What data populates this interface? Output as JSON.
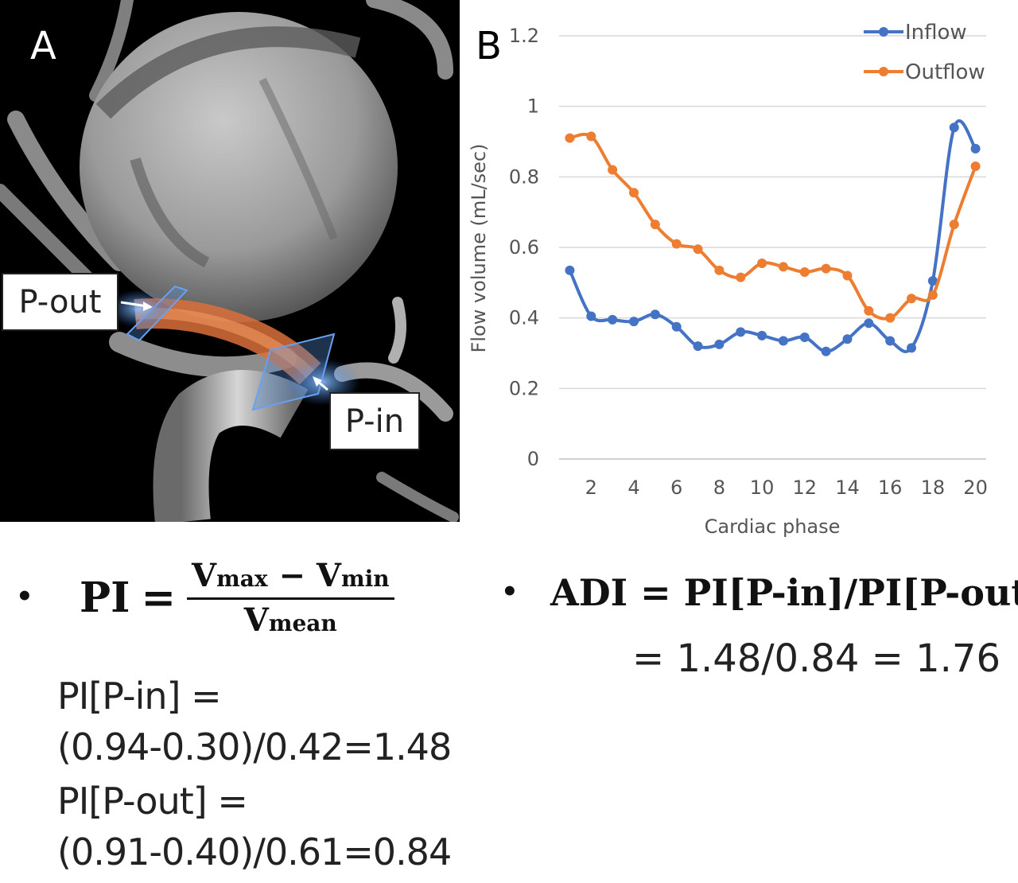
{
  "panel_a": {
    "letter": "A",
    "callout_out": "P-out",
    "callout_in": "P-in"
  },
  "panel_b": {
    "letter": "B"
  },
  "chart_data": {
    "type": "line",
    "xlabel": "Cardiac phase",
    "ylabel": "Flow volume (mL/sec)",
    "xlim": [
      0.5,
      20.5
    ],
    "ylim": [
      0,
      1.2
    ],
    "x_ticks": [
      2,
      4,
      6,
      8,
      10,
      12,
      14,
      16,
      18,
      20
    ],
    "y_ticks": [
      "0",
      "0.2",
      "0.4",
      "0.6",
      "0.8",
      "1",
      "1.2"
    ],
    "grid": "horizontal",
    "legend_position": "top-right",
    "x": [
      1,
      2,
      3,
      4,
      5,
      6,
      7,
      8,
      9,
      10,
      11,
      12,
      13,
      14,
      15,
      16,
      17,
      18,
      19,
      20
    ],
    "series": [
      {
        "name": "Inflow",
        "color": "#4472c4",
        "values": [
          0.535,
          0.405,
          0.395,
          0.39,
          0.41,
          0.375,
          0.32,
          0.325,
          0.36,
          0.35,
          0.335,
          0.345,
          0.305,
          0.34,
          0.385,
          0.335,
          0.315,
          0.505,
          0.94,
          0.88
        ]
      },
      {
        "name": "Outflow",
        "color": "#ed7d31",
        "values": [
          0.91,
          0.915,
          0.82,
          0.755,
          0.665,
          0.61,
          0.595,
          0.535,
          0.515,
          0.555,
          0.545,
          0.53,
          0.54,
          0.52,
          0.42,
          0.4,
          0.455,
          0.465,
          0.665,
          0.83
        ]
      }
    ]
  },
  "formulas": {
    "bullet": "•",
    "pi_label": "PI",
    "equals": "=",
    "vmax": "V",
    "vmax_sub": "max",
    "minus": "−",
    "vmin": "V",
    "vmin_sub": "min",
    "vmean": "V",
    "vmean_sub": "mean",
    "pi_in_line1": "PI[P-in] =",
    "pi_in_line2": "(0.94-0.30)/0.42=1.48",
    "pi_out_line1": "PI[P-out] =",
    "pi_out_line2": "(0.91-0.40)/0.61=0.84",
    "adi_formula": "ADI = PI[P-in]/PI[P-out]",
    "adi_result": "= 1.48/0.84 = 1.76"
  }
}
